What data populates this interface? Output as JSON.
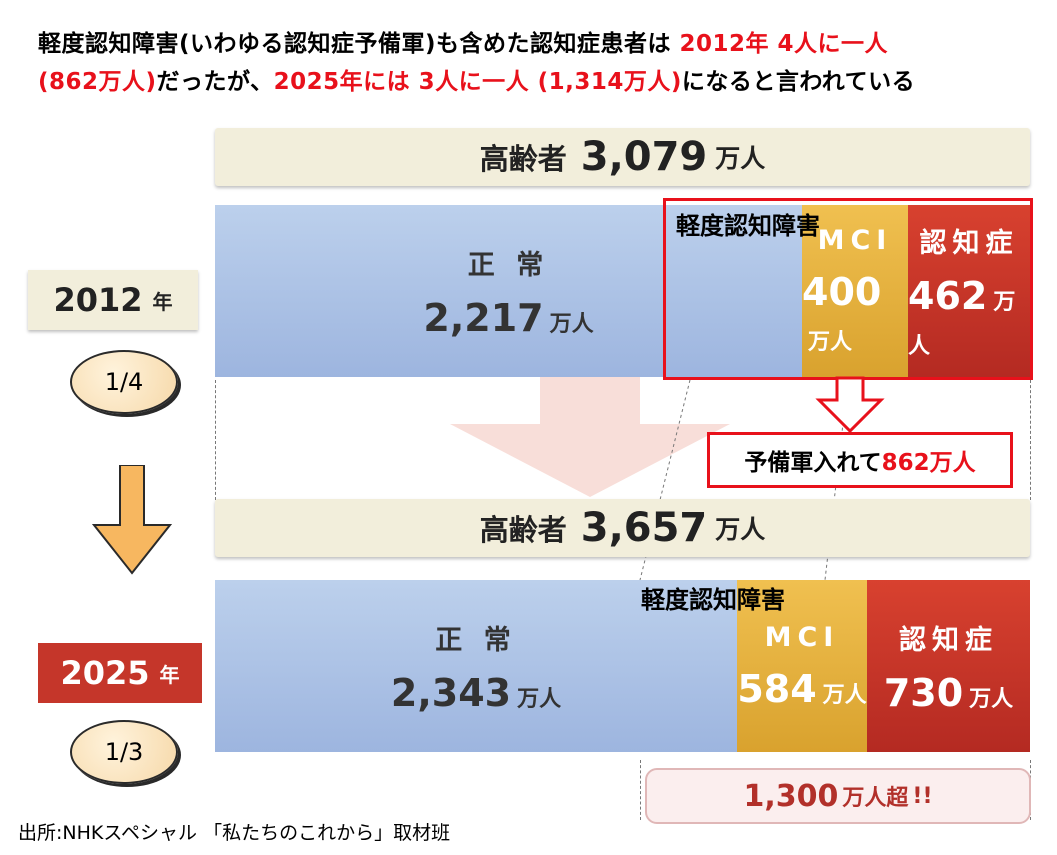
{
  "headline": {
    "l1_a": "軽度認知障害(いわゆる認知症予備軍)も含めた認知症患者は ",
    "l1_b": "2012年 4人に一人",
    "l2_a": "(862万人)",
    "l2_b": "だったが、",
    "l2_c": "2025年には 3人に一人 (1,314万人)",
    "l2_d": "になると言われている"
  },
  "colors": {
    "normal": "#a9c0e6",
    "mci": "#e2ae3d",
    "dementia": "#c5362a",
    "accent": "#e8111b",
    "band": "#f2eedb"
  },
  "chart_data": {
    "type": "bar",
    "orientation": "horizontal-stacked",
    "unit": "万人",
    "categories": [
      "正 常",
      "MCI",
      "認知症"
    ],
    "rows": [
      {
        "year": "2012",
        "year_suffix": "年",
        "fraction": "1/4",
        "elderly_label": "高齢者",
        "elderly_total": "3,079",
        "elderly_total_value": 3079,
        "values": [
          2217,
          400,
          462
        ],
        "labels": [
          "2,217",
          "400",
          "462"
        ]
      },
      {
        "year": "2025",
        "year_suffix": "年",
        "fraction": "1/3",
        "elderly_label": "高齢者",
        "elderly_total": "3,657",
        "elderly_total_value": 3657,
        "values": [
          2343,
          584,
          730
        ],
        "labels": [
          "2,343",
          "584",
          "730"
        ]
      }
    ],
    "mci_caption": "軽度認知障害",
    "callout": {
      "a": "予備軍入れて",
      "b": "862万人"
    },
    "total_note": {
      "num": "1,300",
      "unit": "万人超",
      "suffix": "!!"
    }
  },
  "source": "出所:NHKスペシャル 「私たちのこれから」取材班"
}
